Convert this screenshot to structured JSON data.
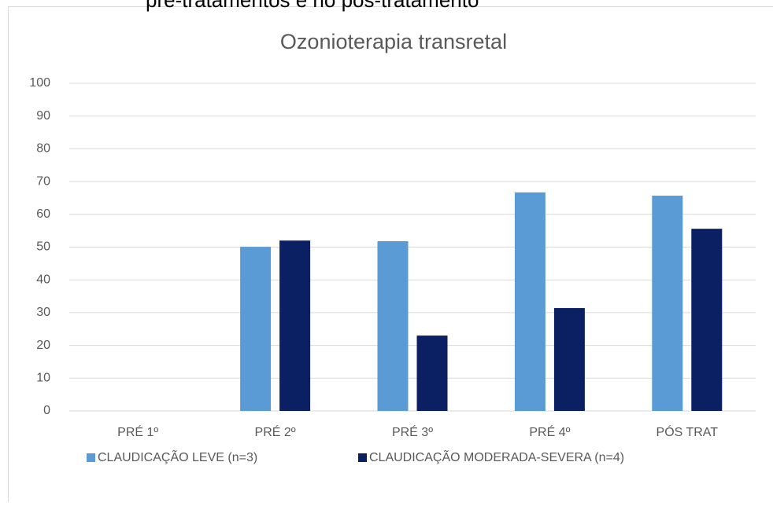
{
  "heading": "pré-tratamentos e no pós-tratamento",
  "chart_data": {
    "type": "bar",
    "title": "Ozonioterapia transretal",
    "categories": [
      "PRÉ 1º",
      "PRÉ 2º",
      "PRÉ 3º",
      "PRÉ 4º",
      "PÓS TRAT"
    ],
    "series": [
      {
        "name": "CLAUDICAÇÃO LEVE (n=3)",
        "color": "#5b9bd5",
        "values": [
          0,
          50.1,
          51.8,
          66.7,
          65.7
        ]
      },
      {
        "name": "CLAUDICAÇÃO MODERADA-SEVERA (n=4)",
        "color": "#0b2062",
        "values": [
          0,
          52,
          23,
          31.4,
          55.6
        ]
      }
    ],
    "ylim": [
      0,
      100
    ],
    "yticks": [
      0,
      10,
      20,
      30,
      40,
      50,
      60,
      70,
      80,
      90,
      100
    ],
    "grid": true,
    "legend": "bottom"
  }
}
